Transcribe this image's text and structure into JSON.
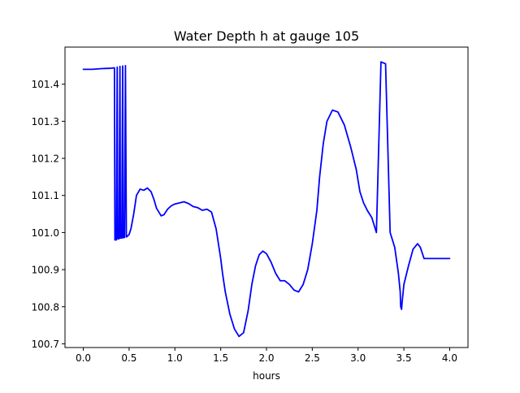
{
  "chart_data": {
    "type": "line",
    "title": "Water Depth h at gauge 105",
    "xlabel": "hours",
    "ylabel": "",
    "xlim": [
      -0.2,
      4.2
    ],
    "ylim": [
      100.69,
      101.5
    ],
    "xticks": [
      0.0,
      0.5,
      1.0,
      1.5,
      2.0,
      2.5,
      3.0,
      3.5,
      4.0
    ],
    "xtick_labels": [
      "0.0",
      "0.5",
      "1.0",
      "1.5",
      "2.0",
      "2.5",
      "3.0",
      "3.5",
      "4.0"
    ],
    "yticks": [
      100.7,
      100.8,
      100.9,
      101.0,
      101.1,
      101.2,
      101.3,
      101.4
    ],
    "ytick_labels": [
      "100.7",
      "100.8",
      "100.9",
      "101.0",
      "101.1",
      "101.2",
      "101.3",
      "101.4"
    ],
    "grid": false,
    "line_color": "#0000ff",
    "series": [
      {
        "x": [
          0.0,
          0.1,
          0.2,
          0.3,
          0.34,
          0.345,
          0.36,
          0.37,
          0.375,
          0.39,
          0.4,
          0.405,
          0.42,
          0.43,
          0.435,
          0.45,
          0.46,
          0.47,
          0.48,
          0.5,
          0.52,
          0.55,
          0.58,
          0.62,
          0.66,
          0.7,
          0.74,
          0.77,
          0.8,
          0.85,
          0.88,
          0.92,
          0.96,
          1.0,
          1.05,
          1.1,
          1.15,
          1.2,
          1.25,
          1.3,
          1.35,
          1.4,
          1.45,
          1.5,
          1.52,
          1.55,
          1.6,
          1.65,
          1.7,
          1.75,
          1.8,
          1.84,
          1.88,
          1.92,
          1.96,
          2.0,
          2.05,
          2.1,
          2.15,
          2.2,
          2.25,
          2.3,
          2.35,
          2.4,
          2.45,
          2.5,
          2.55,
          2.58,
          2.62,
          2.66,
          2.72,
          2.78,
          2.85,
          2.92,
          2.98,
          3.02,
          3.06,
          3.1,
          3.15,
          3.2,
          3.25,
          3.3,
          3.35,
          3.4,
          3.44,
          3.46,
          3.465,
          3.475,
          3.48,
          3.5,
          3.55,
          3.6,
          3.65,
          3.68,
          3.72,
          3.76,
          3.8,
          3.85,
          3.9,
          3.93,
          3.96,
          4.0
        ],
        "y": [
          101.44,
          101.44,
          101.442,
          101.443,
          101.444,
          100.98,
          100.98,
          101.446,
          100.983,
          100.983,
          101.448,
          100.985,
          100.985,
          101.449,
          100.986,
          100.987,
          101.45,
          100.988,
          100.99,
          100.995,
          101.01,
          101.05,
          101.1,
          101.117,
          101.114,
          101.12,
          101.11,
          101.09,
          101.065,
          101.045,
          101.048,
          101.063,
          101.072,
          101.077,
          101.08,
          101.083,
          101.078,
          101.07,
          101.067,
          101.06,
          101.063,
          101.055,
          101.01,
          100.93,
          100.89,
          100.84,
          100.78,
          100.74,
          100.72,
          100.73,
          100.79,
          100.86,
          100.91,
          100.94,
          100.95,
          100.943,
          100.92,
          100.89,
          100.87,
          100.87,
          100.86,
          100.845,
          100.84,
          100.86,
          100.9,
          100.97,
          101.06,
          101.15,
          101.24,
          101.3,
          101.33,
          101.325,
          101.29,
          101.23,
          101.17,
          101.11,
          101.08,
          101.06,
          101.04,
          101.0,
          101.46,
          101.455,
          101.0,
          100.96,
          100.89,
          100.84,
          100.8,
          100.793,
          100.81,
          100.86,
          100.91,
          100.955,
          100.97,
          100.96,
          100.93,
          100.93,
          100.93,
          100.93,
          100.93,
          100.93,
          100.93,
          100.93
        ]
      }
    ]
  }
}
